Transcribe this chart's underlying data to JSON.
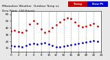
{
  "title": "Milwaukee Weather  Outdoor Temp vs Dew Point  (24 Hours)",
  "bg_color": "#e8e8e8",
  "plot_bg": "#ffffff",
  "temp_color": "#cc0000",
  "dew_color": "#0000cc",
  "legend_label_temp": "Temp",
  "legend_label_dew": "Dew Pt",
  "xlim": [
    0,
    24
  ],
  "ylim": [
    5,
    65
  ],
  "ytick_vals": [
    10,
    20,
    30,
    40,
    50,
    60
  ],
  "ytick_labels": [
    "10",
    "20",
    "30",
    "40",
    "50",
    "60"
  ],
  "xtick_vals": [
    0,
    2,
    4,
    6,
    8,
    10,
    12,
    14,
    16,
    18,
    20,
    22,
    24
  ],
  "xtick_labels": [
    "0",
    "2",
    "4",
    "6",
    "8",
    "10",
    "12",
    "14",
    "16",
    "18",
    "20",
    "22",
    "24"
  ],
  "hours": [
    0,
    1,
    2,
    3,
    4,
    5,
    6,
    7,
    8,
    9,
    10,
    11,
    12,
    13,
    14,
    15,
    16,
    17,
    18,
    19,
    20,
    21,
    22,
    23
  ],
  "temp": [
    35,
    36,
    34,
    33,
    36,
    45,
    50,
    46,
    38,
    33,
    35,
    40,
    44,
    48,
    52,
    55,
    53,
    48,
    43,
    41,
    42,
    44,
    46,
    42
  ],
  "dew": [
    14,
    13,
    13,
    12,
    14,
    16,
    17,
    16,
    17,
    18,
    16,
    14,
    12,
    12,
    13,
    14,
    15,
    16,
    17,
    18,
    19,
    20,
    21,
    20
  ]
}
